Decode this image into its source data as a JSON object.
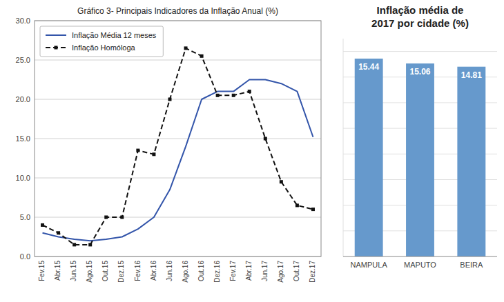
{
  "chart_data": [
    {
      "type": "line",
      "title": "Gráfico 3- Principais Indicadores da Inflação Anual (%)",
      "categories": [
        "Fev.15",
        "Abr.15",
        "Jun.15",
        "Ago.15",
        "Out.15",
        "Dez.15",
        "Fev.16",
        "Abr.16",
        "Jun.16",
        "Ago.16",
        "Out.16",
        "Dez.16",
        "Fev.17",
        "Abr.17",
        "Jun.17",
        "Ago.17",
        "Out.17",
        "Dez.17"
      ],
      "series": [
        {
          "name": "Inflação Média 12 meses",
          "color": "#3355AA",
          "line_style": "solid",
          "values": [
            3.0,
            2.5,
            2.2,
            2.0,
            2.2,
            2.5,
            3.5,
            5.0,
            8.5,
            14.0,
            20.0,
            21.0,
            21.0,
            22.5,
            22.5,
            22.0,
            21.0,
            15.2
          ]
        },
        {
          "name": "Inflação Homóloga",
          "color": "#111111",
          "line_style": "dashed",
          "marker": "square",
          "values": [
            4.0,
            3.0,
            1.5,
            1.5,
            5.0,
            5.0,
            13.5,
            13.0,
            20.0,
            26.5,
            25.5,
            20.5,
            20.5,
            21.0,
            15.0,
            9.5,
            6.5,
            6.0
          ]
        }
      ],
      "ylim": [
        0,
        30
      ],
      "yticks": [
        {
          "value": 0,
          "label": "0.0"
        },
        {
          "value": 5,
          "label": "5.0"
        },
        {
          "value": 10,
          "label": "10.0"
        },
        {
          "value": 15,
          "label": "15.0"
        },
        {
          "value": 20,
          "label": "20.0"
        },
        {
          "value": 25,
          "label": "25.0"
        },
        {
          "value": 30,
          "label": "30.0"
        }
      ],
      "grid": true,
      "legend": "upper-left"
    },
    {
      "type": "bar",
      "title": "Inflação média de\n2017 por cidade (%)",
      "categories": [
        "NAMPULA",
        "MAPUTO",
        "BEIRA"
      ],
      "values": [
        15.44,
        15.06,
        14.81
      ],
      "color": "#6699CC",
      "ylim": [
        0,
        17
      ],
      "yticks": [
        2,
        4,
        6,
        8,
        10,
        12,
        14,
        16
      ],
      "grid": true,
      "tick_labels": "x",
      "data_labels": true
    }
  ]
}
